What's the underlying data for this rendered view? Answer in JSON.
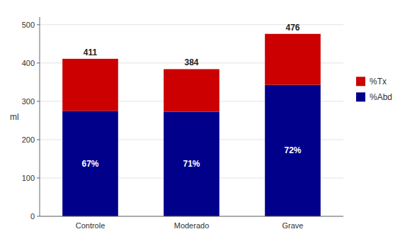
{
  "chart_data": {
    "type": "bar",
    "stacked": true,
    "grid": true,
    "legend": "right",
    "ylabel": "ml",
    "categories": [
      "Controle",
      "Moderado",
      "Grave"
    ],
    "series": [
      {
        "name": "%Abd",
        "color": "#00008B",
        "values": [
          275,
          273,
          343
        ],
        "share_labels": [
          "67%",
          "71%",
          "72%"
        ]
      },
      {
        "name": "%Tx",
        "color": "#CC0000",
        "values": [
          136,
          111,
          133
        ]
      }
    ],
    "totals": [
      411,
      384,
      476
    ],
    "ylim": [
      0,
      520
    ],
    "yticks": [
      0,
      100,
      200,
      300,
      400,
      500
    ]
  }
}
